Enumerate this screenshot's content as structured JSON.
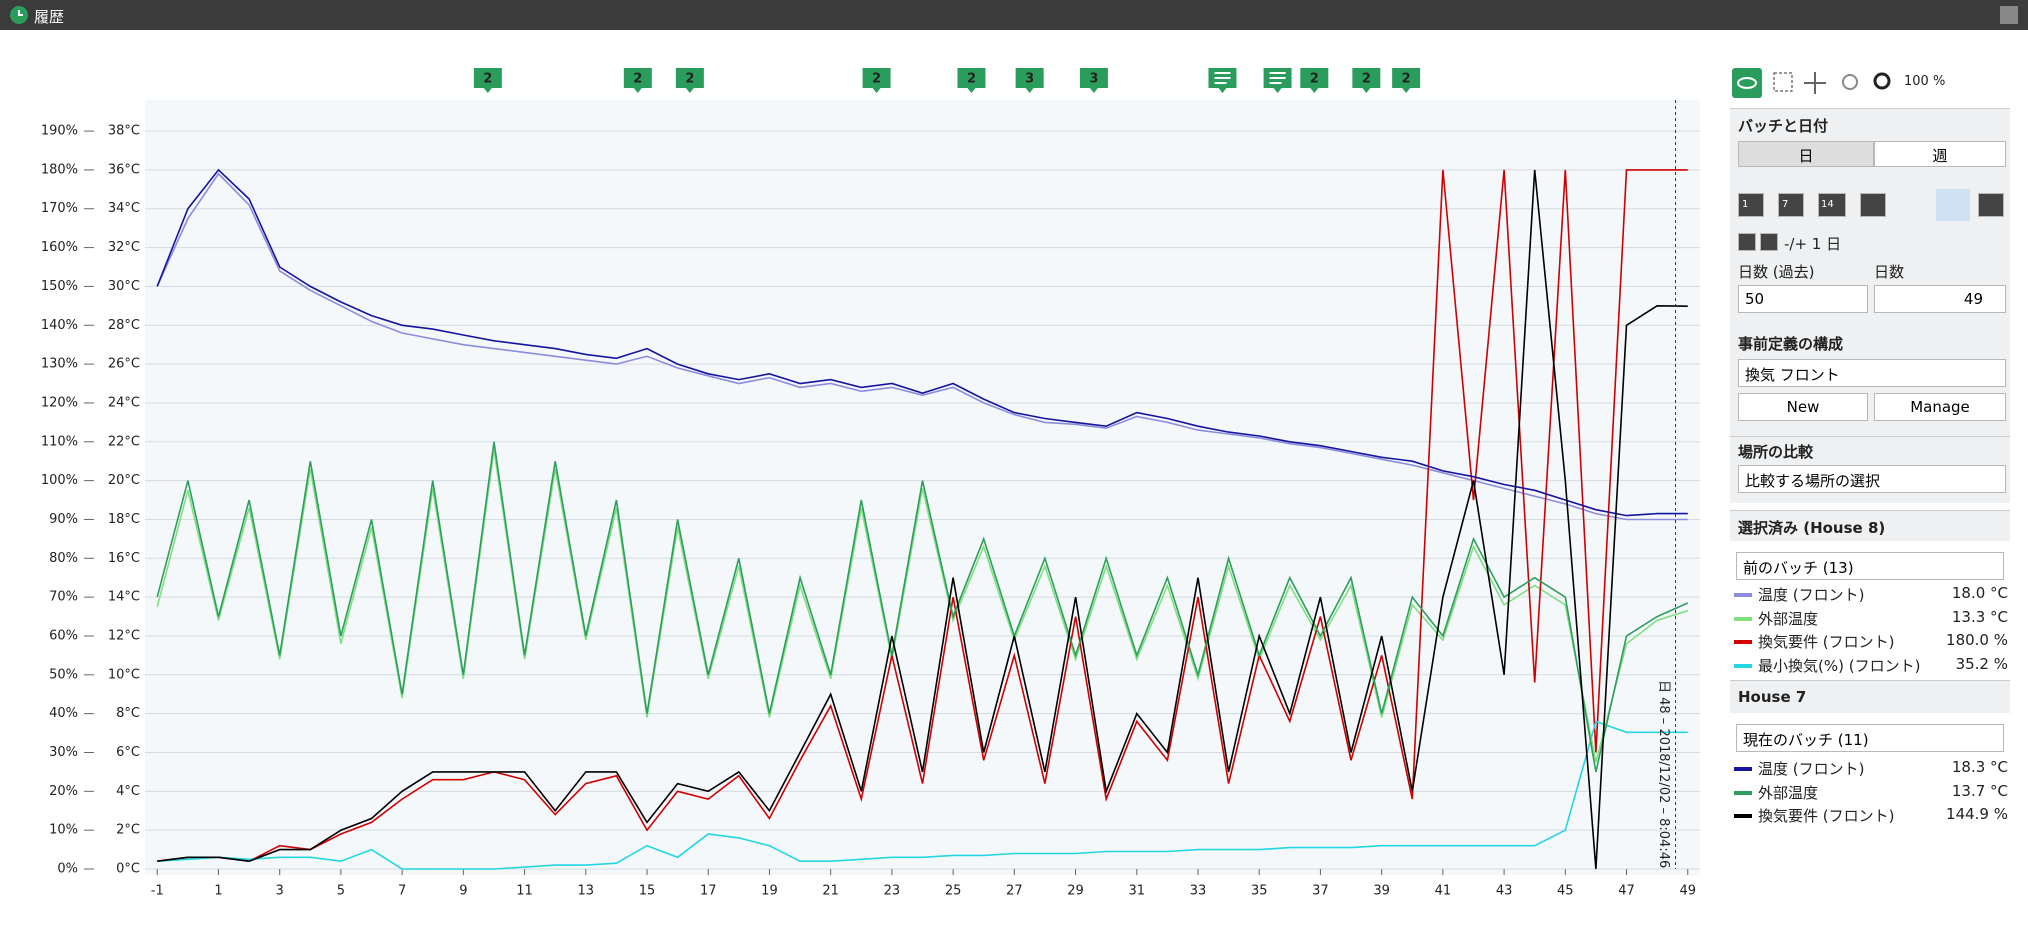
{
  "window": {
    "title": "履歴"
  },
  "chart_data": {
    "type": "line",
    "x": [
      -1,
      0,
      1,
      2,
      3,
      4,
      5,
      6,
      7,
      8,
      9,
      10,
      11,
      12,
      13,
      14,
      15,
      16,
      17,
      18,
      19,
      20,
      21,
      22,
      23,
      24,
      25,
      26,
      27,
      28,
      29,
      30,
      31,
      32,
      33,
      34,
      35,
      36,
      37,
      38,
      39,
      40,
      41,
      42,
      43,
      44,
      45,
      46,
      47,
      48,
      49
    ],
    "xlim": [
      -1.4,
      49.4
    ],
    "xticks": [
      -1,
      1,
      3,
      5,
      7,
      9,
      11,
      13,
      15,
      17,
      19,
      21,
      23,
      25,
      27,
      29,
      31,
      33,
      35,
      37,
      39,
      41,
      43,
      45,
      47,
      49
    ],
    "ylim": [
      0,
      198
    ],
    "yticks": [
      {
        "value": 0,
        "label": "0%"
      },
      {
        "value": 10,
        "label": "10%"
      },
      {
        "value": 20,
        "label": "20%"
      },
      {
        "value": 30,
        "label": "30%"
      },
      {
        "value": 40,
        "label": "40%"
      },
      {
        "value": 50,
        "label": "50%"
      },
      {
        "value": 60,
        "label": "60%"
      },
      {
        "value": 70,
        "label": "70%"
      },
      {
        "value": 80,
        "label": "80%"
      },
      {
        "value": 90,
        "label": "90%"
      },
      {
        "value": 100,
        "label": "100%"
      },
      {
        "value": 110,
        "label": "110%"
      },
      {
        "value": 120,
        "label": "120%"
      },
      {
        "value": 130,
        "label": "130%"
      },
      {
        "value": 140,
        "label": "140%"
      },
      {
        "value": 150,
        "label": "150%"
      },
      {
        "value": 160,
        "label": "160%"
      },
      {
        "value": 170,
        "label": "170%"
      },
      {
        "value": 180,
        "label": "180%"
      },
      {
        "value": 190,
        "label": "190%"
      }
    ],
    "y2lim": [
      0,
      39.6
    ],
    "y2ticks": [
      {
        "value": 0,
        "label": "0°C"
      },
      {
        "value": 2,
        "label": "2°C"
      },
      {
        "value": 4,
        "label": "4°C"
      },
      {
        "value": 6,
        "label": "6°C"
      },
      {
        "value": 8,
        "label": "8°C"
      },
      {
        "value": 10,
        "label": "10°C"
      },
      {
        "value": 12,
        "label": "12°C"
      },
      {
        "value": 14,
        "label": "14°C"
      },
      {
        "value": 16,
        "label": "16°C"
      },
      {
        "value": 18,
        "label": "18°C"
      },
      {
        "value": 20,
        "label": "20°C"
      },
      {
        "value": 22,
        "label": "22°C"
      },
      {
        "value": 24,
        "label": "24°C"
      },
      {
        "value": 26,
        "label": "26°C"
      },
      {
        "value": 28,
        "label": "28°C"
      },
      {
        "value": 30,
        "label": "30°C"
      },
      {
        "value": 32,
        "label": "32°C"
      },
      {
        "value": 34,
        "label": "34°C"
      },
      {
        "value": 36,
        "label": "36°C"
      },
      {
        "value": 38,
        "label": "38°C"
      }
    ],
    "grid": true,
    "series": [
      {
        "name": "温度 (フロント)",
        "readout": "18.0 °C",
        "color": "#8c8cdc",
        "axis": "y2",
        "values": [
          30,
          33.5,
          35.8,
          34.2,
          30.8,
          29.8,
          29,
          28.2,
          27.6,
          27.3,
          27,
          26.8,
          26.6,
          26.4,
          26.2,
          26,
          26.4,
          25.8,
          25.4,
          25,
          25.3,
          24.8,
          25,
          24.6,
          24.8,
          24.4,
          24.8,
          24,
          23.4,
          23,
          22.9,
          22.7,
          23.3,
          23,
          22.6,
          22.4,
          22.2,
          21.9,
          21.7,
          21.4,
          21.1,
          20.8,
          20.4,
          20,
          19.6,
          19.2,
          18.8,
          18.3,
          18,
          18,
          18
        ]
      },
      {
        "name": "外部温度",
        "readout": "13.3 °C",
        "color": "#80e080",
        "axis": "y2",
        "values": [
          13.5,
          19.5,
          12.8,
          18.6,
          10.8,
          20.6,
          11.6,
          17.6,
          8.8,
          19.6,
          9.8,
          21.6,
          10.8,
          20.6,
          11.8,
          18.6,
          7.8,
          17.6,
          9.8,
          15.6,
          7.8,
          14.6,
          9.8,
          18.6,
          10.8,
          19.6,
          12.8,
          16.6,
          11.8,
          15.6,
          10.8,
          15.6,
          10.8,
          14.6,
          9.8,
          15.6,
          10.8,
          14.6,
          11.8,
          14.6,
          7.8,
          13.6,
          11.8,
          16.6,
          13.6,
          14.6,
          13.6,
          5.5,
          11.6,
          12.8,
          13.3
        ]
      },
      {
        "name": "換気要件 (フロント)",
        "readout": "180.0 %",
        "color": "#d00000",
        "axis": "y",
        "values": [
          2,
          3,
          3,
          2,
          6,
          5,
          9,
          12,
          18,
          23,
          23,
          25,
          23,
          14,
          22,
          24,
          10,
          20,
          18,
          24,
          13,
          28,
          42,
          18,
          55,
          22,
          70,
          28,
          55,
          22,
          65,
          18,
          38,
          28,
          70,
          22,
          55,
          38,
          65,
          28,
          55,
          18,
          180,
          95,
          180,
          48,
          180,
          30,
          180,
          180,
          180
        ]
      },
      {
        "name": "最小換気(%) (フロント)",
        "readout": "35.2 %",
        "color": "#22d6e4",
        "axis": "y",
        "values": [
          2,
          2.5,
          3,
          2.5,
          3,
          3,
          2,
          5,
          0,
          0,
          0,
          0,
          0.5,
          1,
          1,
          1.5,
          6,
          3,
          9,
          8,
          6,
          2,
          2,
          2.5,
          3,
          3,
          3.5,
          3.5,
          4,
          4,
          4,
          4.5,
          4.5,
          4.5,
          5,
          5,
          5,
          5.5,
          5.5,
          5.5,
          6,
          6,
          6,
          6,
          6,
          6,
          10,
          38,
          35.2,
          35.2,
          35.2
        ]
      },
      {
        "name": "温度 (フロント)",
        "readout": "18.3 °C",
        "color": "#1414a0",
        "axis": "y2",
        "values": [
          30,
          34,
          36,
          34.5,
          31,
          30,
          29.2,
          28.5,
          28,
          27.8,
          27.5,
          27.2,
          27,
          26.8,
          26.5,
          26.3,
          26.8,
          26,
          25.5,
          25.2,
          25.5,
          25,
          25.2,
          24.8,
          25,
          24.5,
          25,
          24.2,
          23.5,
          23.2,
          23,
          22.8,
          23.5,
          23.2,
          22.8,
          22.5,
          22.3,
          22,
          21.8,
          21.5,
          21.2,
          21,
          20.5,
          20.2,
          19.8,
          19.5,
          19,
          18.5,
          18.2,
          18.3,
          18.3
        ]
      },
      {
        "name": "外部温度",
        "readout": "13.7 °C",
        "color": "#2e9e5e",
        "axis": "y2",
        "values": [
          14,
          20,
          13,
          19,
          11,
          21,
          12,
          18,
          9,
          20,
          10,
          22,
          11,
          21,
          12,
          19,
          8,
          18,
          10,
          16,
          8,
          15,
          10,
          19,
          11,
          20,
          13,
          17,
          12,
          16,
          11,
          16,
          11,
          15,
          10,
          16,
          11,
          15,
          12,
          15,
          8,
          14,
          12,
          17,
          14,
          15,
          14,
          5,
          12,
          13,
          13.7
        ]
      },
      {
        "name": "換気要件 (フロント)",
        "readout": "144.9 %",
        "color": "#000000",
        "axis": "y",
        "values": [
          2,
          3,
          3,
          2,
          5,
          5,
          10,
          13,
          20,
          25,
          25,
          25,
          25,
          15,
          25,
          25,
          12,
          22,
          20,
          25,
          15,
          30,
          45,
          20,
          60,
          25,
          75,
          30,
          60,
          25,
          70,
          20,
          40,
          30,
          75,
          25,
          60,
          40,
          70,
          30,
          60,
          20,
          70,
          100,
          50,
          180,
          100,
          0,
          140,
          145,
          144.9
        ]
      }
    ],
    "markers": [
      {
        "x": 9.8,
        "label": "2"
      },
      {
        "x": 14.7,
        "label": "2"
      },
      {
        "x": 16.4,
        "label": "2"
      },
      {
        "x": 22.5,
        "label": "2"
      },
      {
        "x": 25.6,
        "label": "2"
      },
      {
        "x": 27.5,
        "label": "3"
      },
      {
        "x": 29.6,
        "label": "3"
      },
      {
        "x": 33.8,
        "kind": "note"
      },
      {
        "x": 35.6,
        "kind": "note"
      },
      {
        "x": 36.8,
        "label": "2"
      },
      {
        "x": 38.5,
        "label": "2"
      },
      {
        "x": 39.8,
        "label": "2"
      }
    ],
    "cursor": {
      "x": 48.6,
      "label": "日 48 – 2018/12/02 – 8:04:46"
    }
  },
  "panel": {
    "zoom": "100 %",
    "batch_section": "バッチと日付",
    "tabs": [
      "日",
      "週"
    ],
    "nav": [
      "1",
      "7",
      "14"
    ],
    "step": "-/+ 1 日",
    "days_past_label": "日数 (過去)",
    "days_label": "日数",
    "days_past": "50",
    "days": "49",
    "preset_section": "事前定義の構成",
    "preset": "換気 フロント",
    "buttons": [
      "New",
      "Manage"
    ],
    "compare_section": "場所の比較",
    "compare": "比較する場所の選択",
    "groups": [
      {
        "title": "選択済み (House 8)",
        "batch": "前のバッチ (13)"
      },
      {
        "title": "House 7",
        "batch": "現在のバッチ (11)"
      }
    ]
  }
}
